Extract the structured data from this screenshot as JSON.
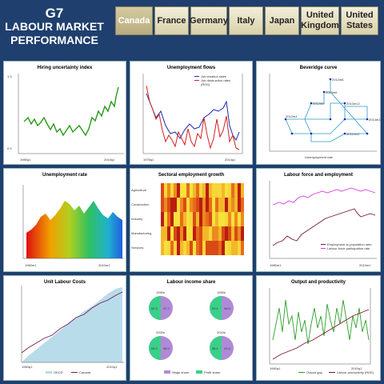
{
  "header": {
    "title_line1": "G7",
    "title_line2": "LABOUR MARKET",
    "title_line3": "PERFORMANCE"
  },
  "tabs": [
    {
      "label": "Canada",
      "active": true
    },
    {
      "label": "France",
      "active": false
    },
    {
      "label": "Germany",
      "active": false
    },
    {
      "label": "Italy",
      "active": false
    },
    {
      "label": "Japan",
      "active": false
    },
    {
      "label": "United Kingdom",
      "active": false
    },
    {
      "label": "United States",
      "active": false
    }
  ],
  "colors": {
    "background": "#1f3f6e",
    "tab_active": "#c4b98c",
    "tab_inactive": "#efe9d0",
    "green_line": "#2a9a1a",
    "blue_line": "#1c2bb0",
    "red_line": "#d42020",
    "maroon_line": "#7a1a2a",
    "magenta_line": "#d43ad4",
    "teal_line": "#2b9bc9"
  },
  "panels": {
    "hiring": {
      "title": "Hiring uncertainty index"
    },
    "flows": {
      "title": "Unemployment flows",
      "legend": [
        "Job creation rates",
        "Job destruction rates",
        "(RHS)"
      ]
    },
    "beveridge": {
      "title": "Beveridge curve",
      "xlabel": "Unemployment rate",
      "points": [
        "2012m6",
        "2013m6",
        "2012m9",
        "2013m12",
        "2012m4",
        "2014m12",
        "2011m12"
      ]
    },
    "unemp_rate": {
      "title": "Unemployment rate"
    },
    "sectoral": {
      "title": "Sectoral employment growth",
      "rows": [
        "Agriculture",
        "Construction",
        "Industry",
        "Manufacturing",
        "Services"
      ]
    },
    "lf_emp": {
      "title": "Labour force and employment",
      "legend": [
        "Employment-to-population ratio",
        "Labour force participation rate"
      ]
    },
    "ulc": {
      "title": "Unit Labour Costs",
      "legend": [
        "OECD",
        "Canada"
      ]
    },
    "income_share": {
      "title": "Labour income share",
      "pies": [
        {
          "year": "1990s",
          "labels": [
            "52.3",
            "47.7"
          ]
        },
        {
          "year": "1990s",
          "labels": [
            "53.1",
            "46.9"
          ]
        },
        {
          "year": "2000s",
          "labels": [
            "54.0",
            "46.0"
          ]
        },
        {
          "year": "2010s",
          "labels": [
            "58.1",
            "41.9"
          ]
        }
      ],
      "legend": [
        "Wage share",
        "Profit share"
      ]
    },
    "output": {
      "title": "Output and productivity",
      "legend": [
        "Output gap",
        "Labour productivity (RHS)"
      ]
    }
  }
}
